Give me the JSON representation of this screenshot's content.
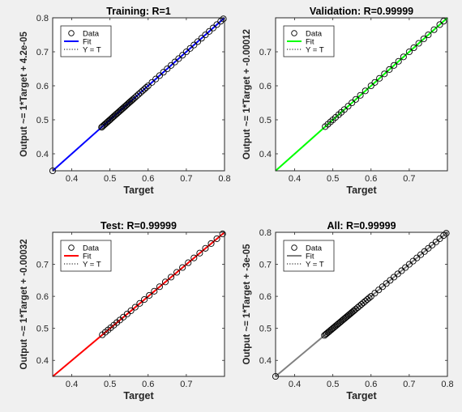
{
  "colors": {
    "background": "#f0f0f0",
    "axes_bg": "#ffffff",
    "training": "#0000ff",
    "validation": "#00ff00",
    "test": "#ff0000",
    "all": "#808080"
  },
  "legend_labels": [
    "Data",
    "Fit",
    "Y = T"
  ],
  "chart_data": [
    {
      "type": "scatter",
      "title": "Training: R=1",
      "xlabel": "Target",
      "ylabel": "Output ~= 1*Target + 4.2e-05",
      "xlim": [
        0.35,
        0.8
      ],
      "ylim": [
        0.35,
        0.8
      ],
      "xticks": [
        0.4,
        0.5,
        0.6,
        0.7,
        0.8
      ],
      "yticks": [
        0.4,
        0.5,
        0.6,
        0.7,
        0.8
      ],
      "xtick_labels": [
        "0.4",
        "0.5",
        "0.6",
        "0.7",
        "0.8"
      ],
      "ytick_labels": [
        "0.4",
        "0.5",
        "0.6",
        "0.7",
        "0.8"
      ],
      "fit_color": "#0000ff",
      "fit": {
        "slope": 1,
        "intercept": 4.2e-05
      },
      "legend_position": "top-left",
      "grid": false,
      "series": [
        {
          "name": "Data",
          "values": [
            [
              0.35,
              0.35
            ],
            [
              0.478,
              0.478
            ],
            [
              0.48,
              0.48
            ],
            [
              0.483,
              0.483
            ],
            [
              0.486,
              0.486
            ],
            [
              0.489,
              0.489
            ],
            [
              0.492,
              0.492
            ],
            [
              0.495,
              0.495
            ],
            [
              0.498,
              0.498
            ],
            [
              0.501,
              0.501
            ],
            [
              0.504,
              0.504
            ],
            [
              0.507,
              0.507
            ],
            [
              0.51,
              0.51
            ],
            [
              0.513,
              0.513
            ],
            [
              0.516,
              0.516
            ],
            [
              0.519,
              0.519
            ],
            [
              0.522,
              0.522
            ],
            [
              0.525,
              0.525
            ],
            [
              0.528,
              0.528
            ],
            [
              0.531,
              0.531
            ],
            [
              0.534,
              0.534
            ],
            [
              0.537,
              0.537
            ],
            [
              0.54,
              0.54
            ],
            [
              0.543,
              0.543
            ],
            [
              0.546,
              0.546
            ],
            [
              0.549,
              0.549
            ],
            [
              0.552,
              0.552
            ],
            [
              0.555,
              0.555
            ],
            [
              0.558,
              0.558
            ],
            [
              0.561,
              0.561
            ],
            [
              0.565,
              0.565
            ],
            [
              0.57,
              0.57
            ],
            [
              0.575,
              0.575
            ],
            [
              0.58,
              0.58
            ],
            [
              0.585,
              0.585
            ],
            [
              0.59,
              0.59
            ],
            [
              0.595,
              0.595
            ],
            [
              0.6,
              0.6
            ],
            [
              0.61,
              0.61
            ],
            [
              0.62,
              0.62
            ],
            [
              0.63,
              0.63
            ],
            [
              0.64,
              0.64
            ],
            [
              0.65,
              0.65
            ],
            [
              0.66,
              0.66
            ],
            [
              0.67,
              0.67
            ],
            [
              0.68,
              0.68
            ],
            [
              0.69,
              0.69
            ],
            [
              0.7,
              0.7
            ],
            [
              0.71,
              0.71
            ],
            [
              0.72,
              0.72
            ],
            [
              0.73,
              0.73
            ],
            [
              0.74,
              0.74
            ],
            [
              0.75,
              0.75
            ],
            [
              0.76,
              0.76
            ],
            [
              0.77,
              0.77
            ],
            [
              0.78,
              0.78
            ],
            [
              0.79,
              0.79
            ],
            [
              0.797,
              0.797
            ]
          ]
        }
      ]
    },
    {
      "type": "scatter",
      "title": "Validation: R=0.99999",
      "xlabel": "Target",
      "ylabel": "Output ~= 1*Target + -0.00012",
      "xlim": [
        0.35,
        0.8
      ],
      "ylim": [
        0.35,
        0.8
      ],
      "xticks": [
        0.4,
        0.5,
        0.6,
        0.7
      ],
      "yticks": [
        0.4,
        0.5,
        0.6,
        0.7
      ],
      "xtick_labels": [
        "0.4",
        "0.5",
        "0.6",
        "0.7"
      ],
      "ytick_labels": [
        "0.4",
        "0.5",
        "0.6",
        "0.7"
      ],
      "fit_color": "#00ff00",
      "fit": {
        "slope": 1,
        "intercept": -0.00012
      },
      "legend_position": "top-left",
      "grid": false,
      "series": [
        {
          "name": "Data",
          "values": [
            [
              0.48,
              0.48
            ],
            [
              0.487,
              0.487
            ],
            [
              0.494,
              0.494
            ],
            [
              0.5,
              0.5
            ],
            [
              0.507,
              0.507
            ],
            [
              0.515,
              0.515
            ],
            [
              0.522,
              0.522
            ],
            [
              0.53,
              0.53
            ],
            [
              0.54,
              0.54
            ],
            [
              0.55,
              0.55
            ],
            [
              0.56,
              0.56
            ],
            [
              0.572,
              0.572
            ],
            [
              0.585,
              0.585
            ],
            [
              0.6,
              0.6
            ],
            [
              0.61,
              0.61
            ],
            [
              0.622,
              0.622
            ],
            [
              0.635,
              0.635
            ],
            [
              0.648,
              0.648
            ],
            [
              0.66,
              0.66
            ],
            [
              0.672,
              0.672
            ],
            [
              0.685,
              0.685
            ],
            [
              0.7,
              0.7
            ],
            [
              0.712,
              0.712
            ],
            [
              0.725,
              0.725
            ],
            [
              0.738,
              0.738
            ],
            [
              0.75,
              0.75
            ],
            [
              0.765,
              0.765
            ],
            [
              0.78,
              0.78
            ],
            [
              0.79,
              0.79
            ]
          ]
        }
      ]
    },
    {
      "type": "scatter",
      "title": "Test: R=0.99999",
      "xlabel": "Target",
      "ylabel": "Output ~= 1*Target + -0.00032",
      "xlim": [
        0.35,
        0.8
      ],
      "ylim": [
        0.35,
        0.8
      ],
      "xticks": [
        0.4,
        0.5,
        0.6,
        0.7
      ],
      "yticks": [
        0.4,
        0.5,
        0.6,
        0.7
      ],
      "xtick_labels": [
        "0.4",
        "0.5",
        "0.6",
        "0.7"
      ],
      "ytick_labels": [
        "0.4",
        "0.5",
        "0.6",
        "0.7"
      ],
      "fit_color": "#ff0000",
      "fit": {
        "slope": 1,
        "intercept": -0.00032
      },
      "legend_position": "top-left",
      "grid": false,
      "series": [
        {
          "name": "Data",
          "values": [
            [
              0.48,
              0.48
            ],
            [
              0.488,
              0.488
            ],
            [
              0.495,
              0.495
            ],
            [
              0.502,
              0.502
            ],
            [
              0.51,
              0.51
            ],
            [
              0.518,
              0.518
            ],
            [
              0.526,
              0.526
            ],
            [
              0.535,
              0.535
            ],
            [
              0.545,
              0.545
            ],
            [
              0.555,
              0.555
            ],
            [
              0.566,
              0.566
            ],
            [
              0.578,
              0.578
            ],
            [
              0.59,
              0.59
            ],
            [
              0.603,
              0.603
            ],
            [
              0.616,
              0.616
            ],
            [
              0.63,
              0.63
            ],
            [
              0.645,
              0.645
            ],
            [
              0.66,
              0.66
            ],
            [
              0.675,
              0.675
            ],
            [
              0.69,
              0.69
            ],
            [
              0.705,
              0.705
            ],
            [
              0.72,
              0.72
            ],
            [
              0.735,
              0.735
            ],
            [
              0.75,
              0.75
            ],
            [
              0.765,
              0.765
            ],
            [
              0.78,
              0.78
            ],
            [
              0.795,
              0.795
            ]
          ]
        }
      ]
    },
    {
      "type": "scatter",
      "title": "All: R=0.99999",
      "xlabel": "Target",
      "ylabel": "Output ~= 1*Target + -3e-05",
      "xlim": [
        0.35,
        0.8
      ],
      "ylim": [
        0.35,
        0.8
      ],
      "xticks": [
        0.4,
        0.5,
        0.6,
        0.7,
        0.8
      ],
      "yticks": [
        0.4,
        0.5,
        0.6,
        0.7,
        0.8
      ],
      "xtick_labels": [
        "0.4",
        "0.5",
        "0.6",
        "0.7",
        "0.8"
      ],
      "ytick_labels": [
        "0.4",
        "0.5",
        "0.6",
        "0.7",
        "0.8"
      ],
      "fit_color": "#808080",
      "fit": {
        "slope": 1,
        "intercept": -3e-05
      },
      "legend_position": "top-left",
      "grid": false,
      "series": [
        {
          "name": "Data",
          "values": [
            [
              0.35,
              0.35
            ],
            [
              0.478,
              0.478
            ],
            [
              0.481,
              0.481
            ],
            [
              0.484,
              0.484
            ],
            [
              0.487,
              0.487
            ],
            [
              0.49,
              0.49
            ],
            [
              0.493,
              0.493
            ],
            [
              0.496,
              0.496
            ],
            [
              0.499,
              0.499
            ],
            [
              0.502,
              0.502
            ],
            [
              0.505,
              0.505
            ],
            [
              0.508,
              0.508
            ],
            [
              0.511,
              0.511
            ],
            [
              0.514,
              0.514
            ],
            [
              0.517,
              0.517
            ],
            [
              0.52,
              0.52
            ],
            [
              0.523,
              0.523
            ],
            [
              0.526,
              0.526
            ],
            [
              0.529,
              0.529
            ],
            [
              0.532,
              0.532
            ],
            [
              0.535,
              0.535
            ],
            [
              0.538,
              0.538
            ],
            [
              0.541,
              0.541
            ],
            [
              0.544,
              0.544
            ],
            [
              0.547,
              0.547
            ],
            [
              0.55,
              0.55
            ],
            [
              0.553,
              0.553
            ],
            [
              0.556,
              0.556
            ],
            [
              0.56,
              0.56
            ],
            [
              0.565,
              0.565
            ],
            [
              0.57,
              0.57
            ],
            [
              0.575,
              0.575
            ],
            [
              0.58,
              0.58
            ],
            [
              0.585,
              0.585
            ],
            [
              0.59,
              0.59
            ],
            [
              0.595,
              0.595
            ],
            [
              0.6,
              0.6
            ],
            [
              0.61,
              0.61
            ],
            [
              0.62,
              0.62
            ],
            [
              0.63,
              0.63
            ],
            [
              0.64,
              0.64
            ],
            [
              0.65,
              0.65
            ],
            [
              0.66,
              0.66
            ],
            [
              0.67,
              0.67
            ],
            [
              0.68,
              0.68
            ],
            [
              0.69,
              0.69
            ],
            [
              0.7,
              0.7
            ],
            [
              0.71,
              0.71
            ],
            [
              0.72,
              0.72
            ],
            [
              0.73,
              0.73
            ],
            [
              0.74,
              0.74
            ],
            [
              0.75,
              0.75
            ],
            [
              0.76,
              0.76
            ],
            [
              0.77,
              0.77
            ],
            [
              0.78,
              0.78
            ],
            [
              0.79,
              0.79
            ],
            [
              0.797,
              0.797
            ]
          ]
        }
      ]
    }
  ]
}
